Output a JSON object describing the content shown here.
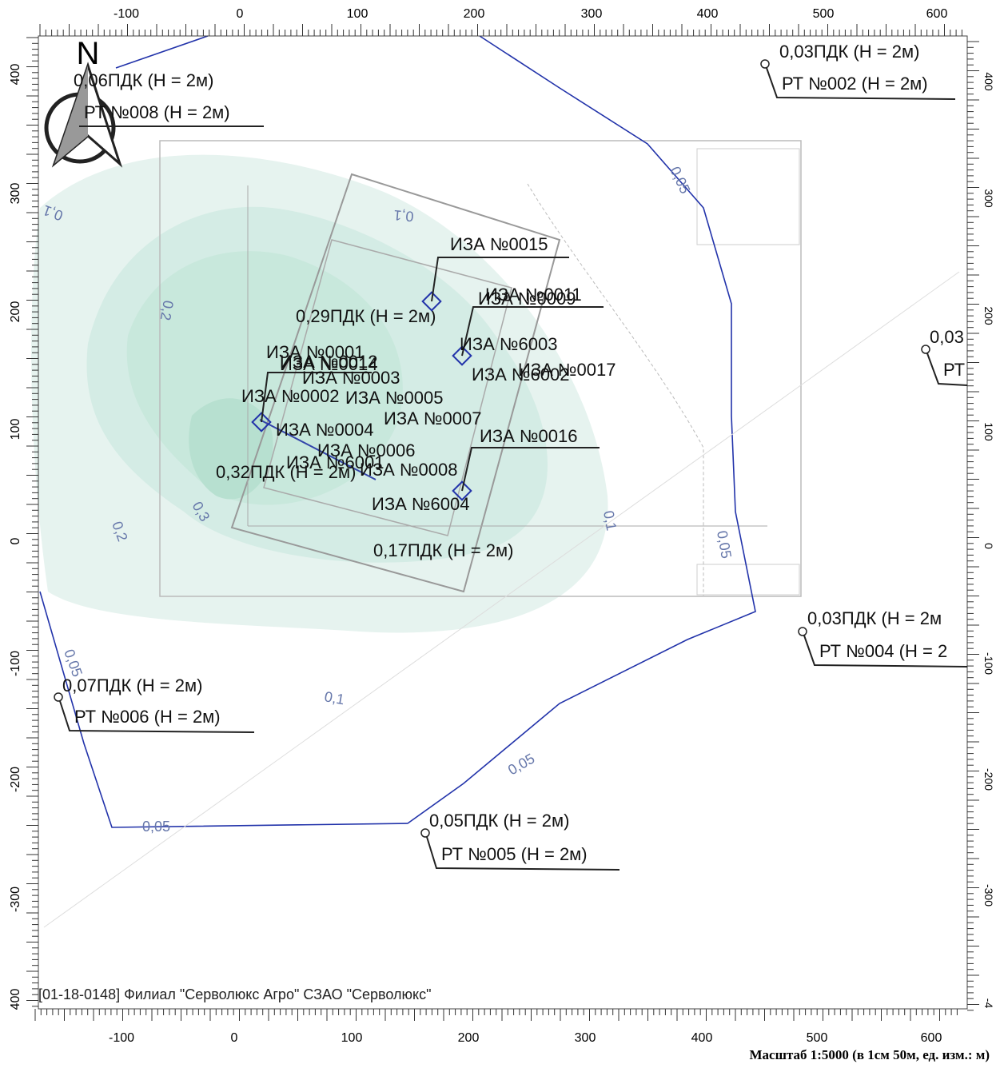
{
  "axes": {
    "top": [
      "-100",
      "0",
      "100",
      "200",
      "300",
      "400",
      "500",
      "600"
    ],
    "bottom": [
      "-100",
      "0",
      "100",
      "200",
      "300",
      "400",
      "500",
      "600"
    ],
    "left": [
      "400",
      "300",
      "200",
      "100",
      "0",
      "-100",
      "-200",
      "-300",
      "400"
    ],
    "right": [
      "400",
      "300",
      "200",
      "100",
      "0",
      "-100",
      "-200",
      "-300",
      "-4"
    ]
  },
  "compass": "N",
  "receptors": [
    {
      "value": "0,03ПДК (Н = 2м)",
      "label": "РТ №002 (Н = 2м)"
    },
    {
      "value": "0,06ПДК (Н = 2м)",
      "label": "РТ №008 (Н = 2м)"
    },
    {
      "value": "0,03",
      "label": "РТ"
    },
    {
      "value": "0,03ПДК (Н = 2м",
      "label": "РТ №004 (Н = 2"
    },
    {
      "value": "0,07ПДК (Н = 2м)",
      "label": "РТ №006 (Н = 2м)"
    },
    {
      "value": "0,05ПДК (Н = 2м)",
      "label": "РТ №005 (Н = 2м)"
    }
  ],
  "point_values": [
    "0,29ПДК (Н = 2м)",
    "0,32ПДК (Н = 2м)",
    "0,17ПДК (Н = 2м)"
  ],
  "sources": [
    "ИЗА №0015",
    "ИЗА №0011",
    "ИЗА №0009",
    "ИЗА №6003",
    "ИЗА №0017",
    "ИЗА №6002",
    "ИЗА №0001",
    "ИЗА №0012",
    "ИЗА №0014",
    "ИЗА №0003",
    "ИЗА №0002",
    "ИЗА №0005",
    "ИЗА №0007",
    "ИЗА №0004",
    "ИЗА №0016",
    "ИЗА №0006",
    "ИЗА №6001",
    "ИЗА №0008",
    "ИЗА №6004"
  ],
  "contours": [
    "0,05",
    "0,05",
    "0,05",
    "0,05",
    "0,05",
    "0,1",
    "0,1",
    "0,1",
    "0,1",
    "0,2",
    "0,2",
    "0,3"
  ],
  "footer": "[01-18-0148] Филиал \"Серволюкс Агро\" СЗАО \"Серволюкс\"",
  "scale": "Масштаб 1:5000 (в 1см 50м, ед. изм.: м)"
}
